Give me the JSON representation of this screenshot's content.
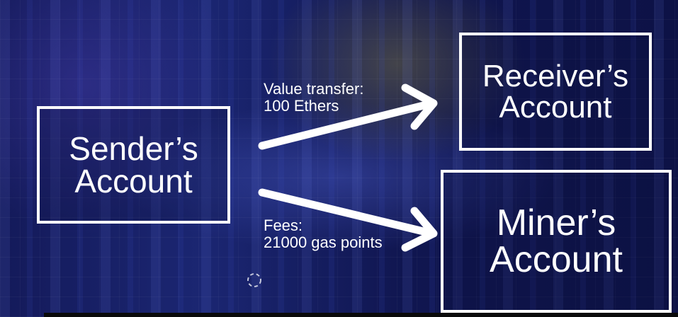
{
  "diagram": {
    "nodes": {
      "sender": {
        "label": "Sender’s\nAccount"
      },
      "receiver": {
        "label": "Receiver’s\nAccount"
      },
      "miner": {
        "label": "Miner’s\nAccount"
      }
    },
    "edges": [
      {
        "from": "sender",
        "to": "receiver",
        "label_line1": "Value transfer:",
        "label_line2": "100 Ethers"
      },
      {
        "from": "sender",
        "to": "miner",
        "label_line1": "Fees:",
        "label_line2": "21000 gas points"
      }
    ]
  },
  "colors": {
    "background": "#0c1244",
    "foreground": "#ffffff"
  },
  "icons": {
    "loading": "loading-spinner-icon"
  }
}
